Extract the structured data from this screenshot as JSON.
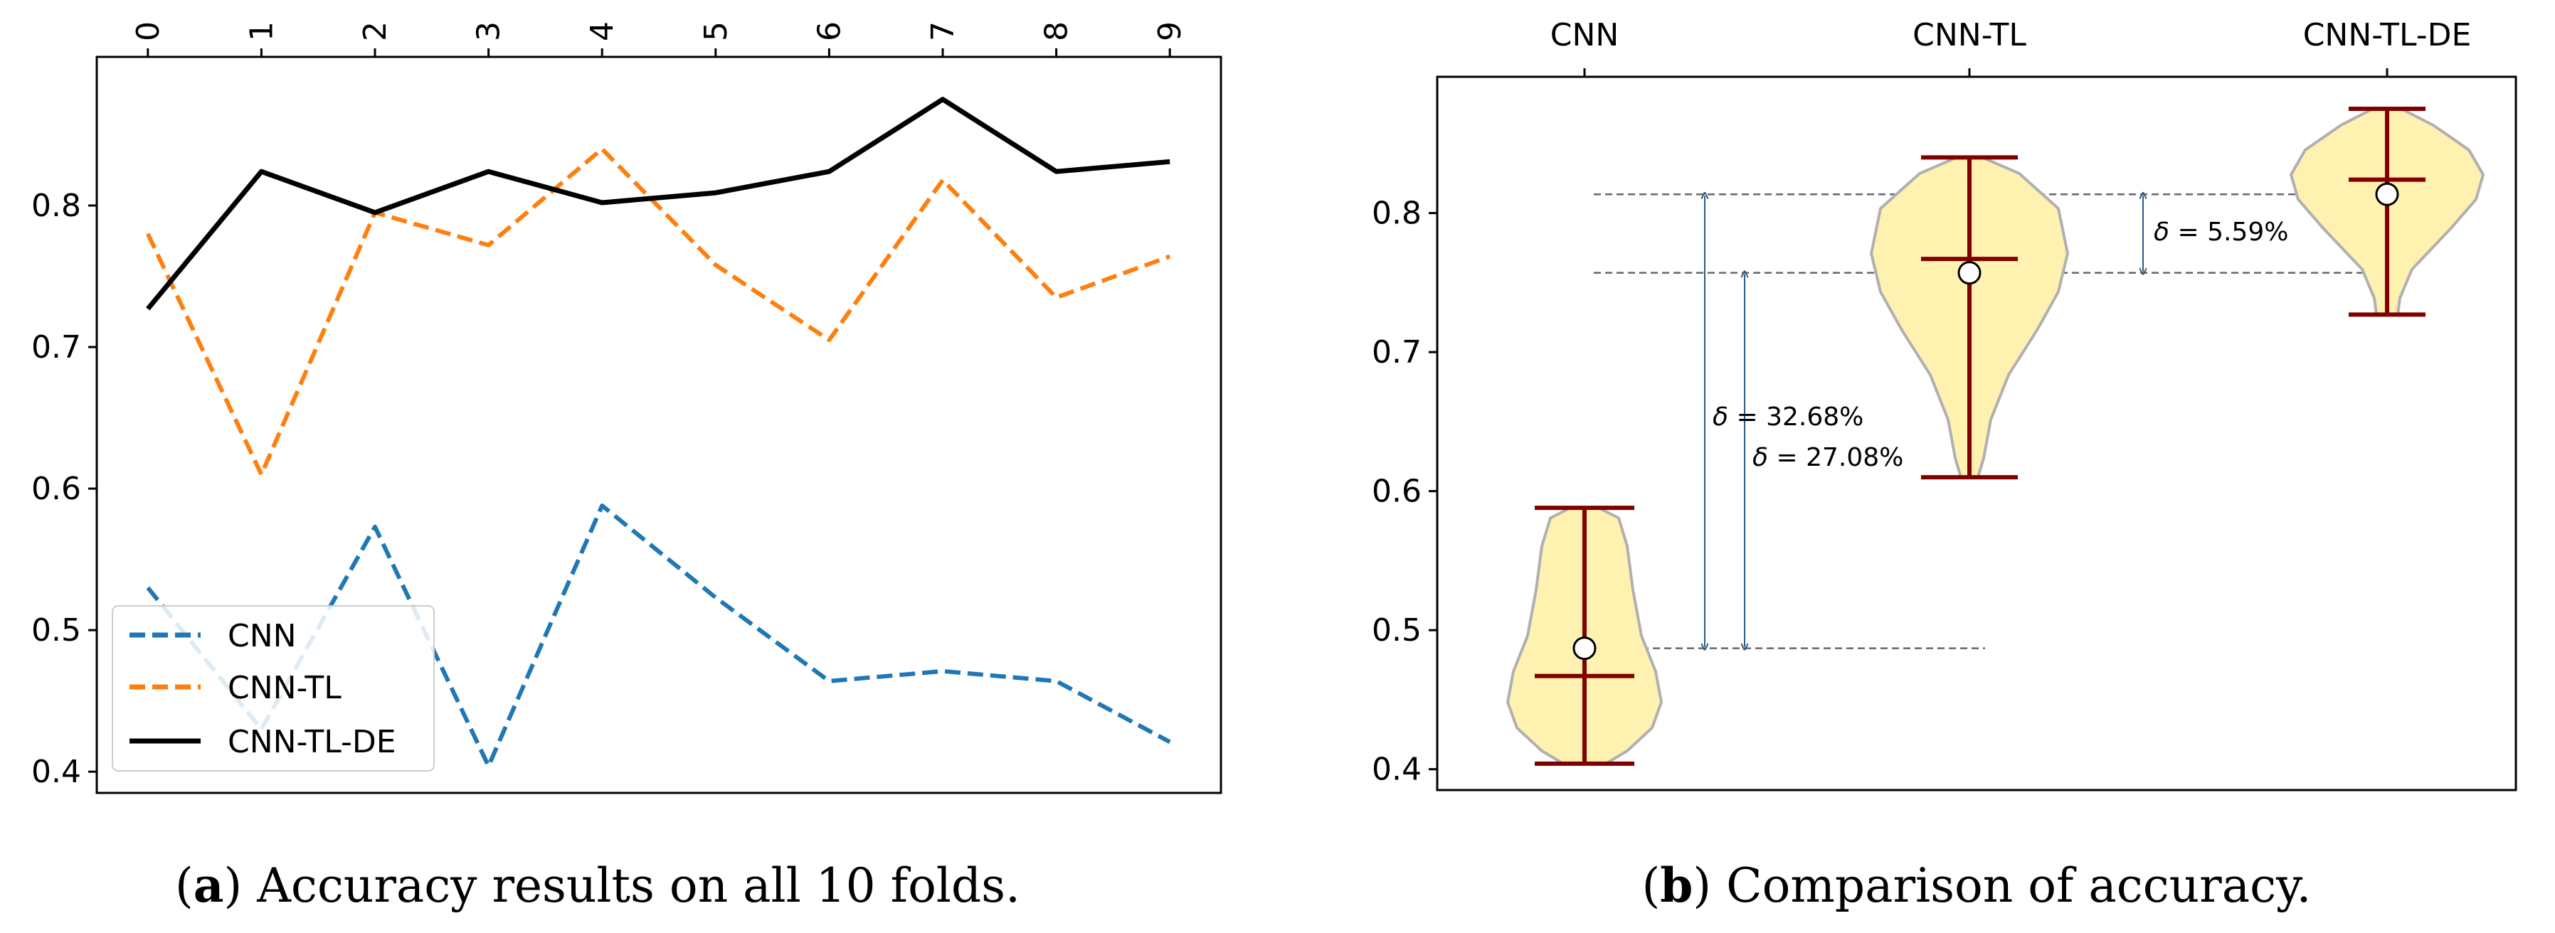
{
  "chart_data": [
    {
      "type": "line",
      "caption": {
        "label": "a",
        "text": "Accuracy results on all 10 folds."
      },
      "x": [
        0,
        1,
        2,
        3,
        4,
        5,
        6,
        7,
        8,
        9
      ],
      "xticklabels": [
        "0",
        "1",
        "2",
        "3",
        "4",
        "5",
        "6",
        "7",
        "8",
        "9"
      ],
      "xlim": [
        -0.45,
        9.45
      ],
      "ylim": [
        0.385,
        0.905
      ],
      "yticks": [
        0.4,
        0.5,
        0.6,
        0.7,
        0.8
      ],
      "yticklabels": [
        "0.4",
        "0.5",
        "0.6",
        "0.7",
        "0.8"
      ],
      "xaxis_position": "top",
      "legend_position": "lower-left",
      "series": [
        {
          "name": "CNN",
          "color": "#1f77b4",
          "style": "dashed",
          "values": [
            0.53,
            0.43,
            0.573,
            0.404,
            0.588,
            0.523,
            0.464,
            0.471,
            0.464,
            0.421
          ]
        },
        {
          "name": "CNN-TL",
          "color": "#ff7f0e",
          "style": "dashed",
          "values": [
            0.78,
            0.61,
            0.795,
            0.772,
            0.84,
            0.758,
            0.705,
            0.818,
            0.735,
            0.764
          ]
        },
        {
          "name": "CNN-TL-DE",
          "color": "#000000",
          "style": "solid",
          "values": [
            0.727,
            0.824,
            0.795,
            0.824,
            0.802,
            0.809,
            0.824,
            0.875,
            0.824,
            0.831
          ]
        }
      ]
    },
    {
      "type": "violin",
      "caption": {
        "label": "b",
        "text": "Comparison of accuracy."
      },
      "categories": [
        "CNN",
        "CNN-TL",
        "CNN-TL-DE"
      ],
      "ylim": [
        0.385,
        0.898
      ],
      "yticks": [
        0.4,
        0.5,
        0.6,
        0.7,
        0.8
      ],
      "yticklabels": [
        "0.4",
        "0.5",
        "0.6",
        "0.7",
        "0.8"
      ],
      "xaxis_position": "top",
      "fill_color": "#fff1b0",
      "edge_color": "#b0b0b0",
      "bar_color": "#800000",
      "violins": [
        {
          "name": "CNN",
          "min": 0.404,
          "max": 0.588,
          "median": 0.467,
          "mean": 0.487
        },
        {
          "name": "CNN-TL",
          "min": 0.61,
          "max": 0.84,
          "median": 0.767,
          "mean": 0.757
        },
        {
          "name": "CNN-TL-DE",
          "min": 0.727,
          "max": 0.875,
          "median": 0.824,
          "mean": 0.8135
        }
      ],
      "annotations": [
        {
          "from": "CNN",
          "to": "CNN-TL-DE",
          "symbol": "δ",
          "text": " = 32.68%"
        },
        {
          "from": "CNN",
          "to": "CNN-TL",
          "symbol": "δ",
          "text": " = 27.08%"
        },
        {
          "from": "CNN-TL",
          "to": "CNN-TL-DE",
          "symbol": "δ",
          "text": " = 5.59%"
        }
      ]
    }
  ]
}
